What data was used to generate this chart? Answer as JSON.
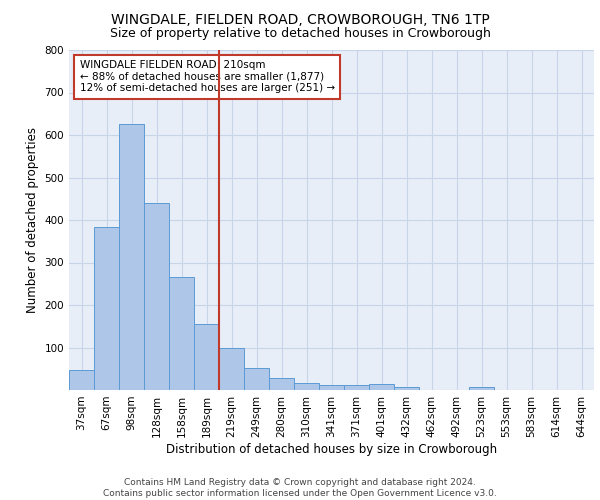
{
  "title1": "WINGDALE, FIELDEN ROAD, CROWBOROUGH, TN6 1TP",
  "title2": "Size of property relative to detached houses in Crowborough",
  "xlabel": "Distribution of detached houses by size in Crowborough",
  "ylabel": "Number of detached properties",
  "categories": [
    "37sqm",
    "67sqm",
    "98sqm",
    "128sqm",
    "158sqm",
    "189sqm",
    "219sqm",
    "249sqm",
    "280sqm",
    "310sqm",
    "341sqm",
    "371sqm",
    "401sqm",
    "432sqm",
    "462sqm",
    "492sqm",
    "523sqm",
    "553sqm",
    "583sqm",
    "614sqm",
    "644sqm"
  ],
  "values": [
    47,
    383,
    625,
    441,
    267,
    155,
    98,
    52,
    28,
    16,
    12,
    12,
    15,
    7,
    0,
    0,
    8,
    0,
    0,
    0,
    0
  ],
  "bar_color": "#aec6e8",
  "bar_edge_color": "#5b9bd5",
  "vline_x": 5.5,
  "vline_color": "#c0392b",
  "annotation_text": "WINGDALE FIELDEN ROAD: 210sqm\n← 88% of detached houses are smaller (1,877)\n12% of semi-detached houses are larger (251) →",
  "annotation_box_color": "#c0392b",
  "ylim": [
    0,
    800
  ],
  "yticks": [
    0,
    100,
    200,
    300,
    400,
    500,
    600,
    700,
    800
  ],
  "grid_color": "#c8d4e8",
  "bg_color": "#e8eef8",
  "footer": "Contains HM Land Registry data © Crown copyright and database right 2024.\nContains public sector information licensed under the Open Government Licence v3.0.",
  "title1_fontsize": 10,
  "title2_fontsize": 9,
  "xlabel_fontsize": 8.5,
  "ylabel_fontsize": 8.5,
  "tick_fontsize": 7.5,
  "annotation_fontsize": 7.5,
  "footer_fontsize": 6.5
}
